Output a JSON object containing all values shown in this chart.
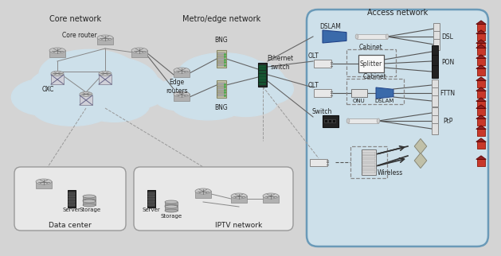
{
  "bg_color": "#d4d4d4",
  "core_cloud_color": "#cde0ea",
  "metro_cloud_color": "#cde0ea",
  "access_box_color": "#cde0ea",
  "access_box_edge": "#6a9ab8",
  "datacenter_box_color": "#e8e8e8",
  "datacenter_box_edge": "#999999",
  "iptv_box_color": "#e8e8e8",
  "iptv_box_edge": "#999999",
  "title_core": "Core network",
  "title_metro": "Metro/edge network",
  "title_access": "Access network",
  "label_core_router": "Core router",
  "label_oxc": "OXC",
  "label_edge_routers": "Edge\nrouters",
  "label_bng_top": "BNG",
  "label_bng_bot": "BNG",
  "label_eth_switch": "Ethernet\nswitch",
  "label_datacenter": "Data center",
  "label_server_dc": "Server",
  "label_storage_dc": "Storage",
  "label_iptv": "IPTV network",
  "label_server_iptv": "Server",
  "label_storage_iptv": "Storage",
  "label_dslam_top": "DSLAM",
  "label_dsl": "DSL",
  "label_olt_top": "OLT",
  "label_cabinet_top": "Cabinet",
  "label_splitter": "Splitter",
  "label_pon": "PON",
  "label_olt_bot": "OLT",
  "label_cabinet_bot": "Cabinet",
  "label_onu": "ONU",
  "label_dslam_bot": "DSLAM",
  "label_fttn": "FTTN",
  "label_switch": "Switch",
  "label_ptp": "PtP",
  "label_wireless": "Wireless"
}
